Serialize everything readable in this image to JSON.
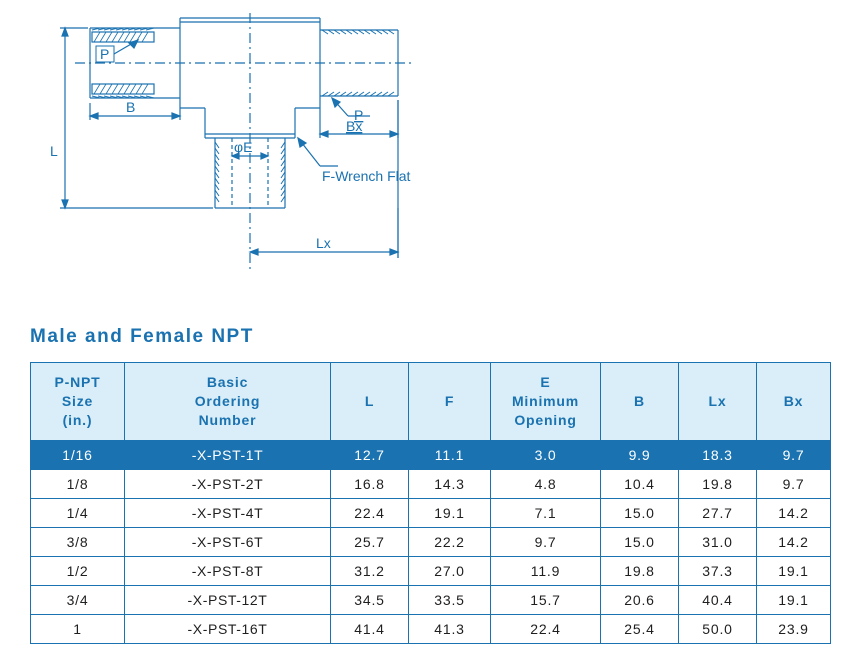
{
  "title": "Male and Female NPT",
  "title_color": "#1a72b0",
  "diagram": {
    "stroke": "#1a72b0",
    "labels": {
      "P1": "P",
      "B": "B",
      "L": "L",
      "phiE": "φE",
      "P2": "P",
      "Bx": "Bx",
      "F": "F-Wrench Flat",
      "Lx": "Lx"
    },
    "label_color": "#1a72b0",
    "label_fontsize": 14
  },
  "table": {
    "border_color": "#1a72b0",
    "header_bg": "#d9eef8",
    "header_fg": "#1a72b0",
    "selected_bg": "#1a72b0",
    "selected_fg": "#ffffff",
    "row_fg": "#1f1f1f",
    "columns": [
      "P-NPT\nSize\n(in.)",
      "Basic\nOrdering\nNumber",
      "L",
      "F",
      "E\nMinimum\nOpening",
      "B",
      "Lx",
      "Bx"
    ],
    "rows": [
      {
        "selected": true,
        "cells": [
          "1/16",
          "-X-PST-1T",
          "12.7",
          "11.1",
          "3.0",
          "9.9",
          "18.3",
          "9.7"
        ]
      },
      {
        "selected": false,
        "cells": [
          "1/8",
          "-X-PST-2T",
          "16.8",
          "14.3",
          "4.8",
          "10.4",
          "19.8",
          "9.7"
        ]
      },
      {
        "selected": false,
        "cells": [
          "1/4",
          "-X-PST-4T",
          "22.4",
          "19.1",
          "7.1",
          "15.0",
          "27.7",
          "14.2"
        ]
      },
      {
        "selected": false,
        "cells": [
          "3/8",
          "-X-PST-6T",
          "25.7",
          "22.2",
          "9.7",
          "15.0",
          "31.0",
          "14.2"
        ]
      },
      {
        "selected": false,
        "cells": [
          "1/2",
          "-X-PST-8T",
          "31.2",
          "27.0",
          "11.9",
          "19.8",
          "37.3",
          "19.1"
        ]
      },
      {
        "selected": false,
        "cells": [
          "3/4",
          "-X-PST-12T",
          "34.5",
          "33.5",
          "15.7",
          "20.6",
          "40.4",
          "19.1"
        ]
      },
      {
        "selected": false,
        "cells": [
          "1",
          "-X-PST-16T",
          "41.4",
          "41.3",
          "22.4",
          "25.4",
          "50.0",
          "23.9"
        ]
      }
    ]
  }
}
